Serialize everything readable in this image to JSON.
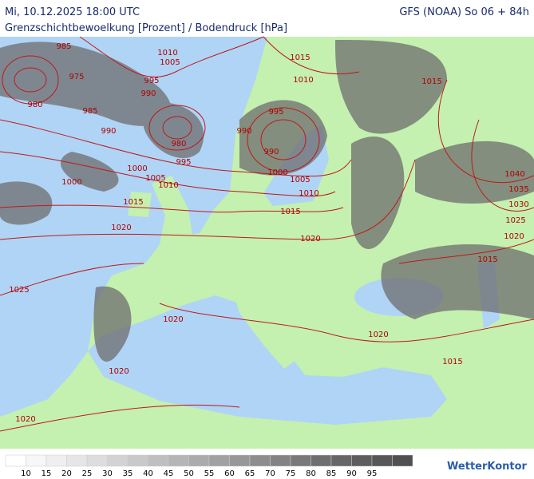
{
  "header": {
    "date": "Mi, 10.12.2025 18:00 UTC",
    "model": "GFS (NOAA) So 06 + 84h",
    "subtitle": "Grenzschichtbewoelkung [Prozent] / Bodendruck [hPa]"
  },
  "isobar_labels": [
    "985",
    "1010",
    "1005",
    "975",
    "995",
    "990",
    "980",
    "985",
    "1015",
    "1010",
    "1015",
    "995",
    "990",
    "990",
    "980",
    "990",
    "995",
    "1000",
    "1005",
    "1010",
    "1000",
    "1000",
    "1005",
    "1010",
    "1015",
    "1015",
    "1020",
    "1020",
    "1040",
    "1035",
    "1030",
    "1025",
    "1020",
    "1015",
    "1025",
    "1020",
    "1020",
    "1015",
    "1020",
    "1020"
  ],
  "legend": {
    "labels": [
      "10",
      "15",
      "20",
      "25",
      "30",
      "35",
      "40",
      "45",
      "50",
      "55",
      "60",
      "65",
      "70",
      "75",
      "80",
      "85",
      "90",
      "95"
    ],
    "colors": [
      "#ffffff",
      "#f7f7f7",
      "#efefef",
      "#e6e6e6",
      "#dddddd",
      "#d3d3d3",
      "#c9c9c9",
      "#bfbfbf",
      "#b5b5b5",
      "#ababab",
      "#a1a1a1",
      "#979797",
      "#8d8d8d",
      "#838383",
      "#797979",
      "#6f6f6f",
      "#666666",
      "#5e5e5e",
      "#575757",
      "#505050"
    ]
  },
  "logo": "WetterKontor"
}
